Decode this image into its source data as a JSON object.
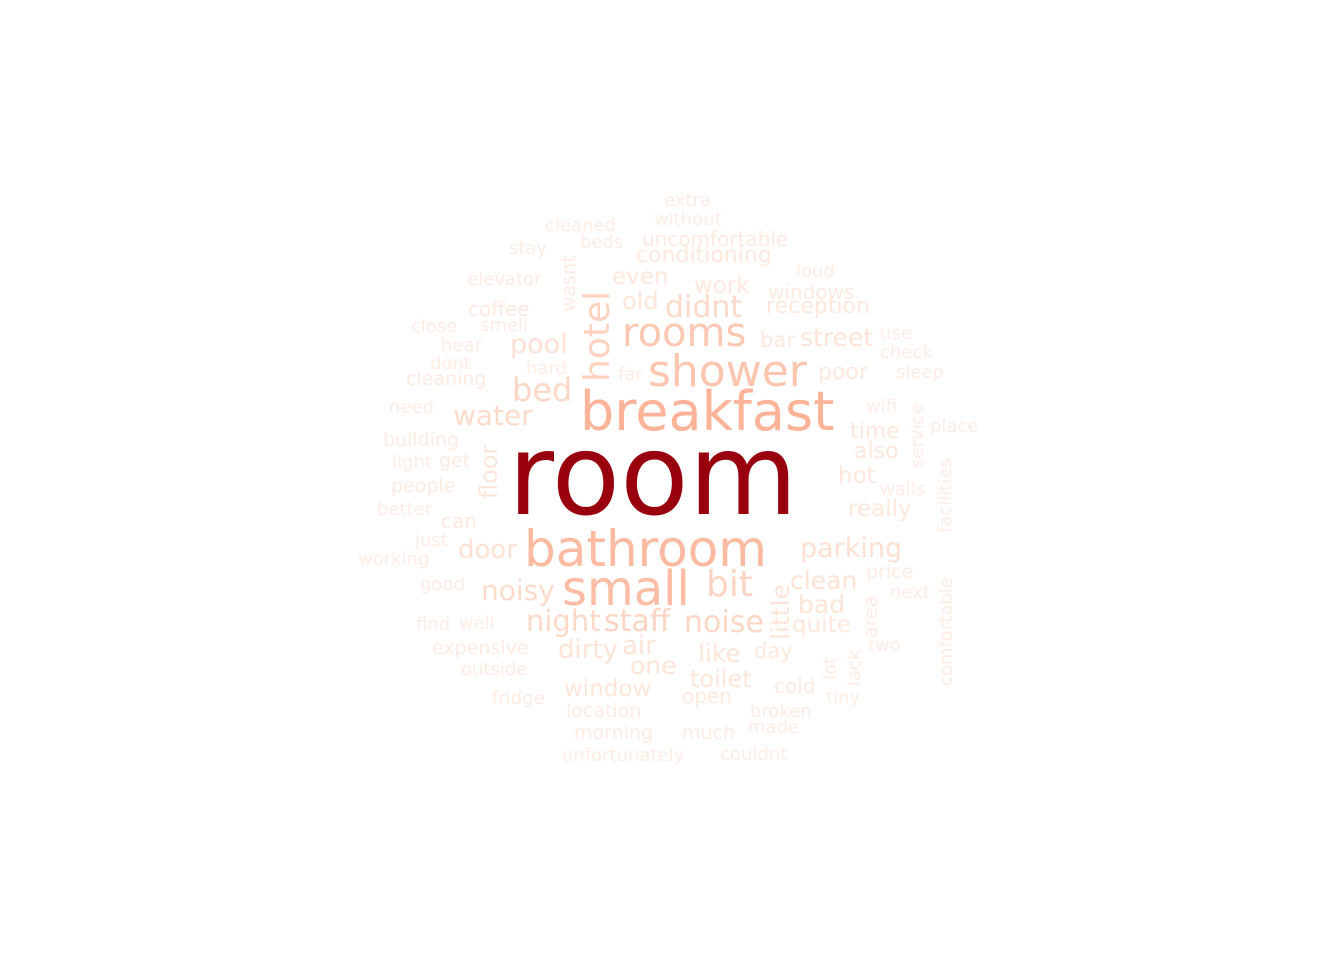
{
  "words": [
    {
      "text": "room",
      "color": "#99000d"
    },
    {
      "text": "breakfast",
      "color": "#fcb398"
    },
    {
      "text": "bathroom",
      "color": "#fcbba1"
    },
    {
      "text": "small",
      "color": "#fcbda4"
    },
    {
      "text": "shower",
      "color": "#fcc5ae"
    },
    {
      "text": "rooms",
      "color": "#fcc8b2"
    },
    {
      "text": "hotel",
      "color": "#fdd2bf"
    },
    {
      "text": "bit",
      "color": "#fdd4c2"
    },
    {
      "text": "bed",
      "color": "#fdd7c6"
    },
    {
      "text": "noise",
      "color": "#fdd7c5"
    },
    {
      "text": "staff",
      "color": "#fdd4c2"
    },
    {
      "text": "didnt",
      "color": "#fdd9c9"
    },
    {
      "text": "night",
      "color": "#fdd9c8"
    },
    {
      "text": "noisy",
      "color": "#fddbcb"
    },
    {
      "text": "water",
      "color": "#fddbcb"
    },
    {
      "text": "parking",
      "color": "#fee0d2"
    },
    {
      "text": "pool",
      "color": "#fee1d4"
    },
    {
      "text": "door",
      "color": "#fee1d4"
    },
    {
      "text": "dirty",
      "color": "#fee3d6"
    },
    {
      "text": "air",
      "color": "#fee3d6"
    },
    {
      "text": "clean",
      "color": "#fee3d6"
    },
    {
      "text": "street",
      "color": "#fee3d6"
    },
    {
      "text": "like",
      "color": "#fee5d8"
    },
    {
      "text": "one",
      "color": "#fee5d8"
    },
    {
      "text": "bad",
      "color": "#fee5d8"
    },
    {
      "text": "little",
      "color": "#fee5d8"
    },
    {
      "text": "floor",
      "color": "#fee6da"
    },
    {
      "text": "old",
      "color": "#fee6da"
    },
    {
      "text": "toilet",
      "color": "#fee6da"
    },
    {
      "text": "window",
      "color": "#fee6da"
    },
    {
      "text": "even",
      "color": "#fee7dc"
    },
    {
      "text": "work",
      "color": "#fee7dc"
    },
    {
      "text": "really",
      "color": "#fee7dc"
    },
    {
      "text": "quite",
      "color": "#fee7dc"
    },
    {
      "text": "hot",
      "color": "#fee7dc"
    },
    {
      "text": "also",
      "color": "#fee8dd"
    },
    {
      "text": "time",
      "color": "#fee8dd"
    },
    {
      "text": "poor",
      "color": "#fee8dd"
    },
    {
      "text": "reception",
      "color": "#fee8dd"
    },
    {
      "text": "conditioning",
      "color": "#fee8de"
    },
    {
      "text": "bar",
      "color": "#fee9df"
    },
    {
      "text": "day",
      "color": "#fee9df"
    },
    {
      "text": "cold",
      "color": "#fee9df"
    },
    {
      "text": "open",
      "color": "#fee9df"
    },
    {
      "text": "can",
      "color": "#fee9df"
    },
    {
      "text": "windows",
      "color": "#feeae0"
    },
    {
      "text": "uncomfortable",
      "color": "#feeae0"
    },
    {
      "text": "coffee",
      "color": "#feeae0"
    },
    {
      "text": "wasnt",
      "color": "#feeae1"
    },
    {
      "text": "get",
      "color": "#feeae1"
    },
    {
      "text": "people",
      "color": "#feeae1"
    },
    {
      "text": "cleaning",
      "color": "#feeae1"
    },
    {
      "text": "building",
      "color": "#feebe2"
    },
    {
      "text": "location",
      "color": "#feebe2"
    },
    {
      "text": "morning",
      "color": "#feebe2"
    },
    {
      "text": "much",
      "color": "#feebe2"
    },
    {
      "text": "expensive",
      "color": "#feebe2"
    },
    {
      "text": "area",
      "color": "#feebe2"
    },
    {
      "text": "price",
      "color": "#feebe2"
    },
    {
      "text": "good",
      "color": "#feece3"
    },
    {
      "text": "fridge",
      "color": "#feece3"
    },
    {
      "text": "outside",
      "color": "#feece3"
    },
    {
      "text": "just",
      "color": "#feece3"
    },
    {
      "text": "broken",
      "color": "#feece3"
    },
    {
      "text": "lack",
      "color": "#feece3"
    },
    {
      "text": "lot",
      "color": "#feece3"
    },
    {
      "text": "hear",
      "color": "#feece3"
    },
    {
      "text": "smell",
      "color": "#feece3"
    },
    {
      "text": "elevator",
      "color": "#feece3"
    },
    {
      "text": "beds",
      "color": "#feede4"
    },
    {
      "text": "cleaned",
      "color": "#feede4"
    },
    {
      "text": "without",
      "color": "#feede4"
    },
    {
      "text": "extra",
      "color": "#feede4"
    },
    {
      "text": "stay",
      "color": "#feede4"
    },
    {
      "text": "loud",
      "color": "#feede4"
    },
    {
      "text": "use",
      "color": "#feede4"
    },
    {
      "text": "check",
      "color": "#feede4"
    },
    {
      "text": "sleep",
      "color": "#feede4"
    },
    {
      "text": "wifi",
      "color": "#feede4"
    },
    {
      "text": "service",
      "color": "#feede4"
    },
    {
      "text": "place",
      "color": "#feede4"
    },
    {
      "text": "facilities",
      "color": "#feede4"
    },
    {
      "text": "walls",
      "color": "#feede4"
    },
    {
      "text": "next",
      "color": "#feede4"
    },
    {
      "text": "comfortable",
      "color": "#feede4"
    },
    {
      "text": "two",
      "color": "#feede4"
    },
    {
      "text": "tiny",
      "color": "#feede4"
    },
    {
      "text": "made",
      "color": "#feede4"
    },
    {
      "text": "couldnt",
      "color": "#feede4"
    },
    {
      "text": "unfortunately",
      "color": "#feede4"
    },
    {
      "text": "well",
      "color": "#feede4"
    },
    {
      "text": "find",
      "color": "#feede4"
    },
    {
      "text": "working",
      "color": "#feede4"
    },
    {
      "text": "better",
      "color": "#feede4"
    },
    {
      "text": "light",
      "color": "#feede4"
    },
    {
      "text": "need",
      "color": "#feede4"
    },
    {
      "text": "dont",
      "color": "#feede4"
    },
    {
      "text": "close",
      "color": "#feede4"
    },
    {
      "text": "hard",
      "color": "#feede4"
    },
    {
      "text": "far",
      "color": "#feede4"
    }
  ]
}
